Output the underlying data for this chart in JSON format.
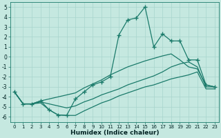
{
  "xlabel": "Humidex (Indice chaleur)",
  "x": [
    0,
    1,
    2,
    3,
    4,
    5,
    6,
    7,
    8,
    9,
    10,
    11,
    12,
    13,
    14,
    15,
    16,
    17,
    18,
    19,
    20,
    21,
    22,
    23
  ],
  "main_line": [
    -3.5,
    -4.7,
    -4.7,
    -4.4,
    -5.3,
    -5.8,
    -5.85,
    -4.2,
    -3.5,
    -2.8,
    -2.5,
    -2.0,
    2.2,
    3.7,
    3.9,
    5.0,
    1.0,
    2.3,
    1.6,
    1.6,
    -0.3,
    -0.3,
    -2.8,
    -3.0
  ],
  "upper_line": [
    -3.5,
    -4.7,
    -4.7,
    -4.4,
    -4.2,
    -4.0,
    -3.8,
    -3.6,
    -3.1,
    -2.7,
    -2.3,
    -1.8,
    -1.4,
    -1.0,
    -0.7,
    -0.4,
    -0.15,
    0.1,
    0.3,
    -0.3,
    -1.0,
    -1.2,
    -2.8,
    -3.0
  ],
  "mid_line": [
    -3.5,
    -4.7,
    -4.7,
    -4.5,
    -4.7,
    -4.9,
    -5.1,
    -4.9,
    -4.5,
    -4.2,
    -3.8,
    -3.5,
    -3.2,
    -2.8,
    -2.5,
    -2.2,
    -1.9,
    -1.5,
    -1.0,
    -0.7,
    -0.5,
    -1.0,
    -3.0,
    -3.0
  ],
  "lower_line": [
    -3.5,
    -4.7,
    -4.7,
    -4.6,
    -5.3,
    -5.8,
    -5.85,
    -5.85,
    -5.4,
    -5.0,
    -4.6,
    -4.3,
    -3.9,
    -3.6,
    -3.3,
    -3.0,
    -2.8,
    -2.5,
    -2.2,
    -2.0,
    -1.8,
    -1.5,
    -3.2,
    -3.2
  ],
  "bg_color": "#c5e8e0",
  "grid_color": "#a8d4cc",
  "line_color": "#1a7a6a",
  "ylim": [
    -6.5,
    5.5
  ],
  "xlim": [
    -0.5,
    23.5
  ],
  "yticks": [
    -6,
    -5,
    -4,
    -3,
    -2,
    -1,
    0,
    1,
    2,
    3,
    4,
    5
  ],
  "xticks": [
    0,
    1,
    2,
    3,
    4,
    5,
    6,
    7,
    8,
    9,
    10,
    11,
    12,
    13,
    14,
    15,
    16,
    17,
    18,
    19,
    20,
    21,
    22,
    23
  ]
}
